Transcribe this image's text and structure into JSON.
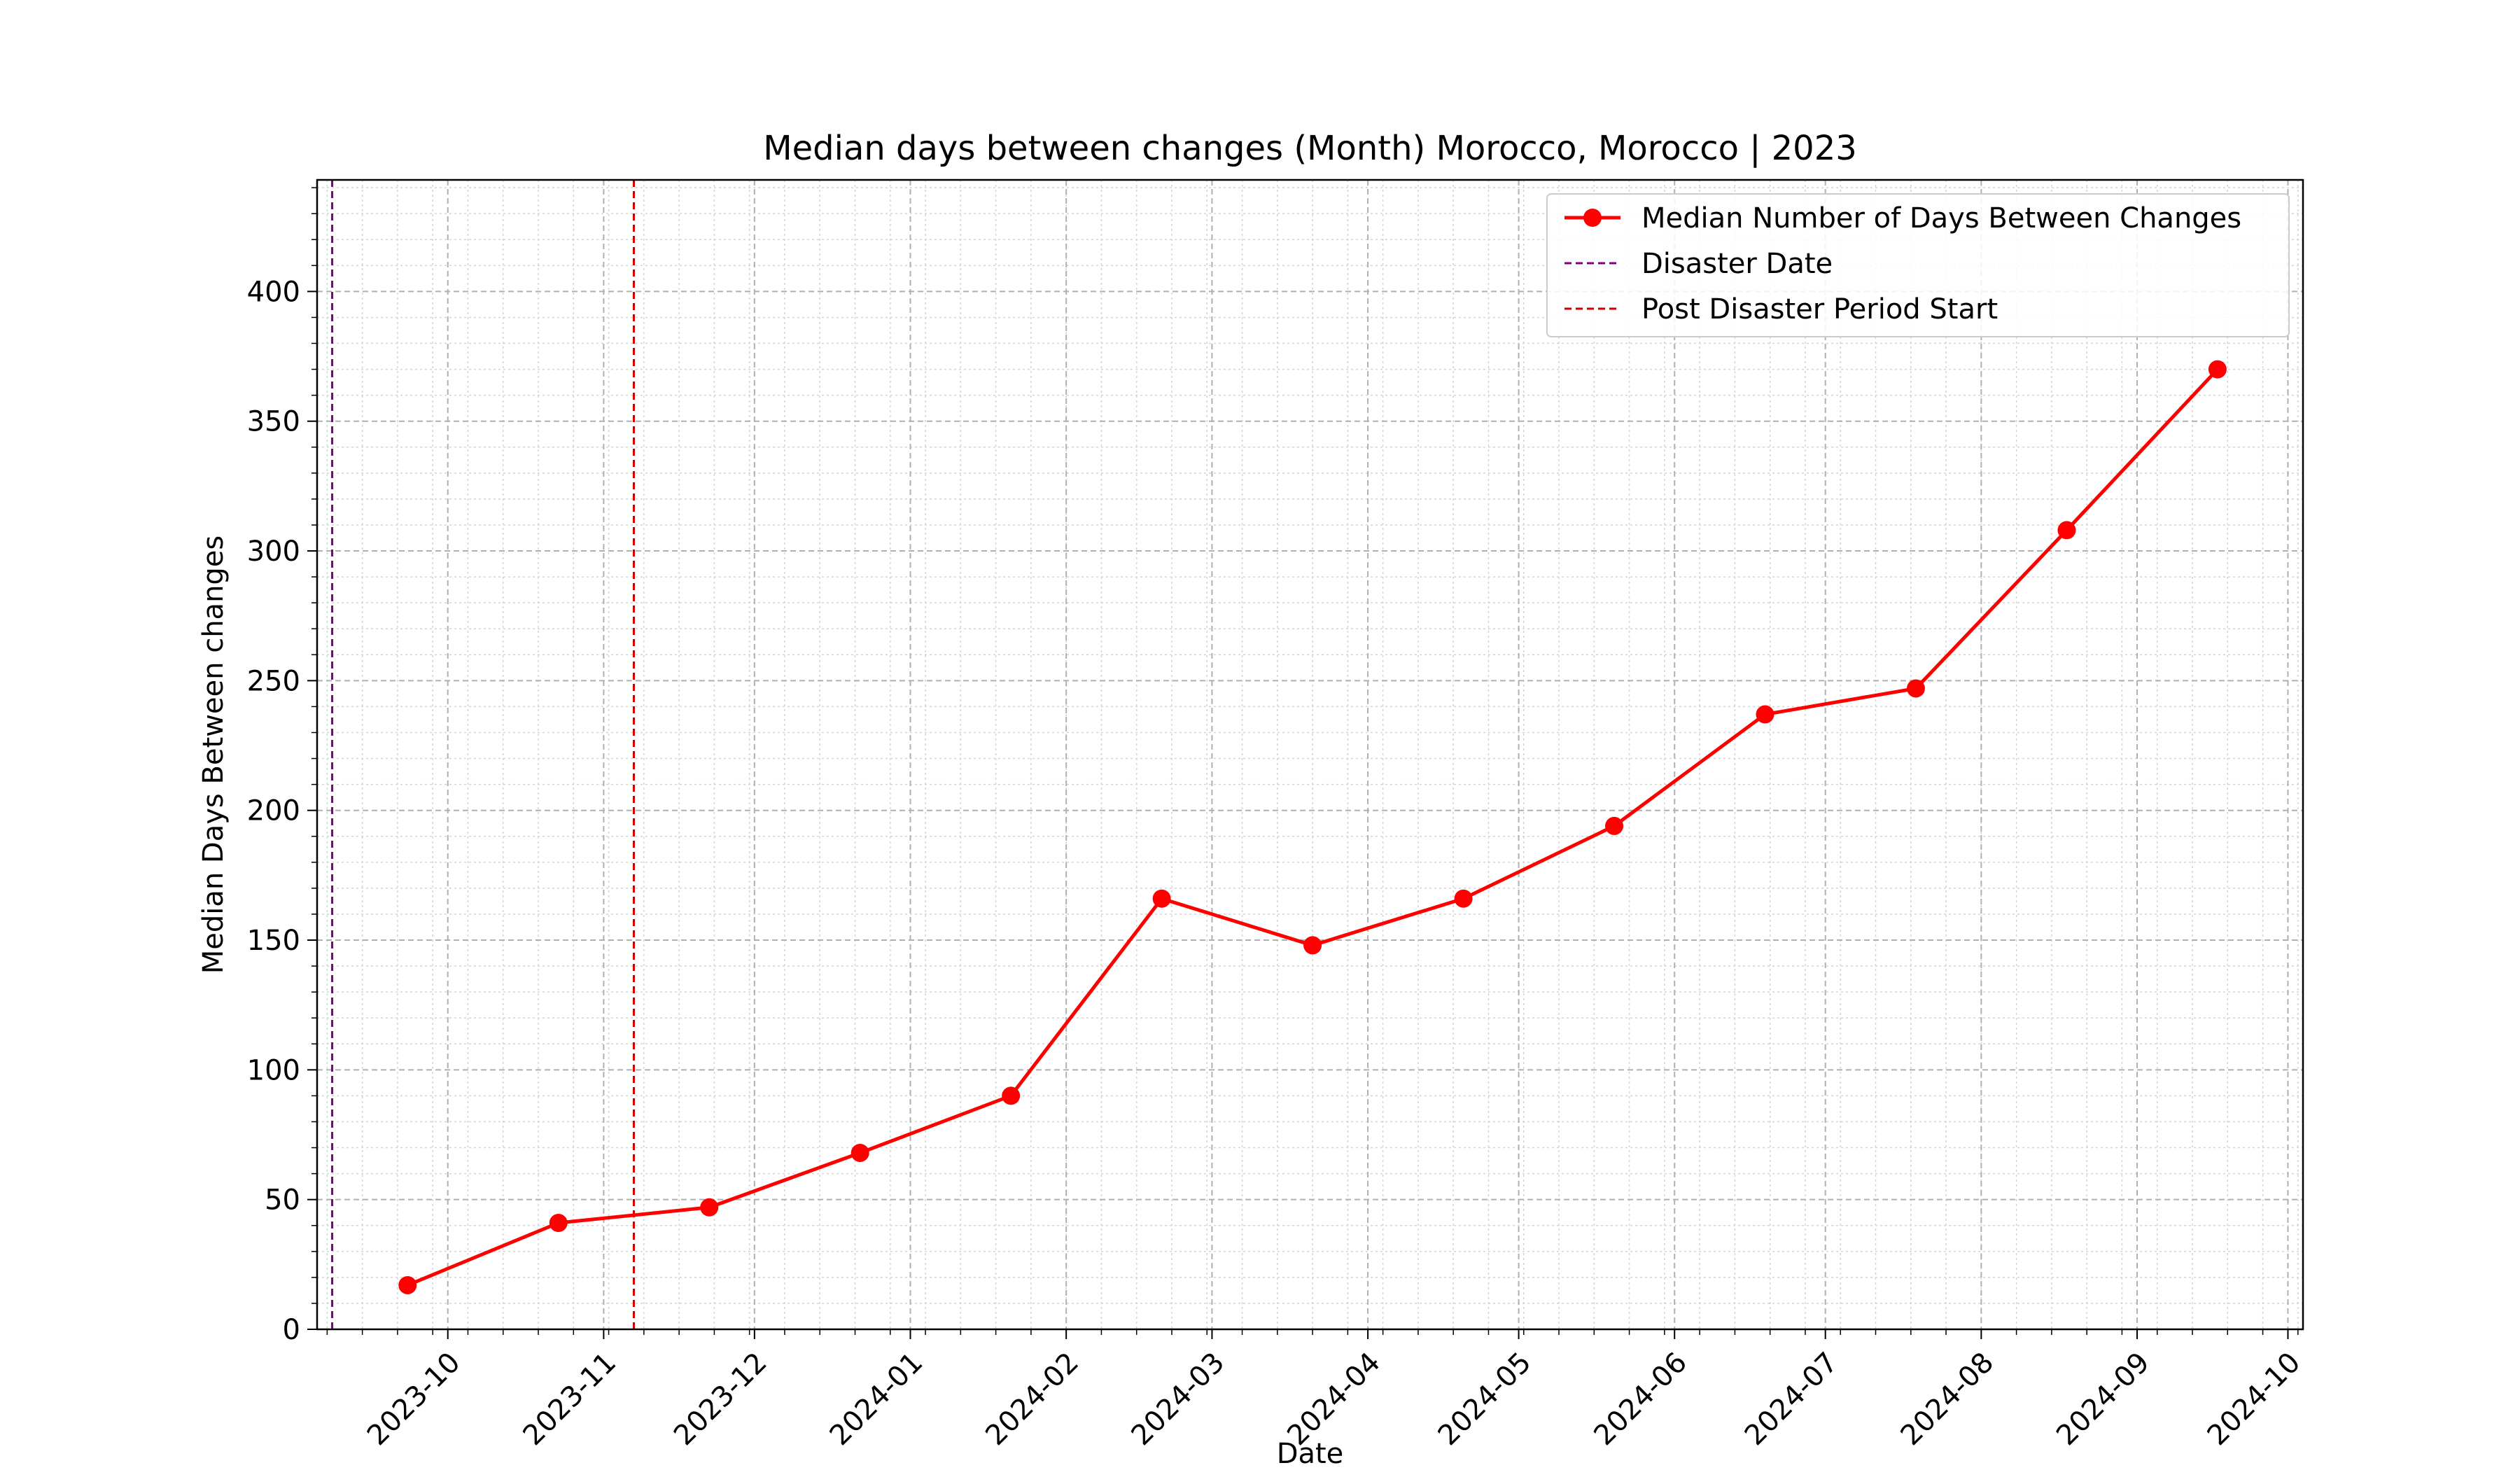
{
  "chart_data": {
    "type": "line",
    "title": "Median days between changes (Month) Morocco, Morocco | 2023",
    "xlabel": "Date",
    "ylabel": "Median Days Between changes",
    "x_axis": {
      "kind": "date",
      "range": [
        "2023-09-05",
        "2024-10-04"
      ],
      "ticks": [
        "2023-10",
        "2023-11",
        "2023-12",
        "2024-01",
        "2024-02",
        "2024-03",
        "2024-04",
        "2024-05",
        "2024-06",
        "2024-07",
        "2024-08",
        "2024-09",
        "2024-10"
      ],
      "minor_ticks": "weekly"
    },
    "y_axis": {
      "range": [
        0,
        443
      ],
      "ticks": [
        "0",
        "50",
        "100",
        "150",
        "200",
        "250",
        "300",
        "350",
        "400"
      ],
      "minor_step": 10
    },
    "grid": true,
    "legend_position": "top-right",
    "series": [
      {
        "name": "Median Number of Days Between Changes",
        "color": "#ff0000",
        "marker": "circle",
        "x": [
          "2023-09-23",
          "2023-10-23",
          "2023-11-22",
          "2023-12-22",
          "2024-01-21",
          "2024-02-20",
          "2024-03-21",
          "2024-04-20",
          "2024-05-20",
          "2024-06-19",
          "2024-07-19",
          "2024-08-18",
          "2024-09-17"
        ],
        "y": [
          17,
          41,
          47,
          68,
          90,
          166,
          148,
          166,
          194,
          237,
          247,
          308,
          370
        ]
      }
    ],
    "vlines": [
      {
        "name": "Disaster Date",
        "date": "2023-09-08",
        "color": "#800080",
        "style": "dashed"
      },
      {
        "name": "Post Disaster Period Start",
        "date": "2023-11-07",
        "color": "#cc0000",
        "style": "dashed"
      }
    ]
  }
}
